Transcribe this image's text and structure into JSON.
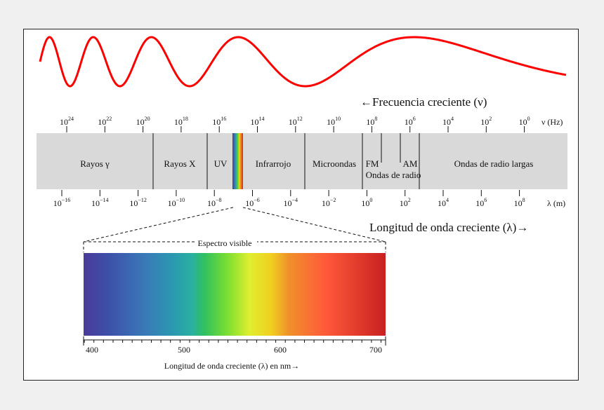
{
  "title_frequency": "←Frecuencia creciente (ν)",
  "title_wavelength": "Longitud de onda creciente (λ)→",
  "frequency_axis": {
    "unit_label": "ν (Hz)",
    "ticks": [
      {
        "base": "10",
        "exp": "24"
      },
      {
        "base": "10",
        "exp": "22"
      },
      {
        "base": "10",
        "exp": "20"
      },
      {
        "base": "10",
        "exp": "18"
      },
      {
        "base": "10",
        "exp": "16"
      },
      {
        "base": "10",
        "exp": "14"
      },
      {
        "base": "10",
        "exp": "12"
      },
      {
        "base": "10",
        "exp": "10"
      },
      {
        "base": "10",
        "exp": "8"
      },
      {
        "base": "10",
        "exp": "6"
      },
      {
        "base": "10",
        "exp": "4"
      },
      {
        "base": "10",
        "exp": "2"
      },
      {
        "base": "10",
        "exp": "0"
      }
    ]
  },
  "wavelength_axis": {
    "unit_label": "λ (m)",
    "ticks": [
      {
        "base": "10",
        "exp": "−16"
      },
      {
        "base": "10",
        "exp": "−14"
      },
      {
        "base": "10",
        "exp": "−12"
      },
      {
        "base": "10",
        "exp": "−10"
      },
      {
        "base": "10",
        "exp": "−8"
      },
      {
        "base": "10",
        "exp": "−6"
      },
      {
        "base": "10",
        "exp": "−4"
      },
      {
        "base": "10",
        "exp": "−2"
      },
      {
        "base": "10",
        "exp": "0"
      },
      {
        "base": "10",
        "exp": "2"
      },
      {
        "base": "10",
        "exp": "4"
      },
      {
        "base": "10",
        "exp": "6"
      },
      {
        "base": "10",
        "exp": "8"
      }
    ]
  },
  "bands": [
    {
      "label": "Rayos γ"
    },
    {
      "label": "Rayos X"
    },
    {
      "label": "UV"
    },
    {
      "label": "Infrarrojo"
    },
    {
      "label": "Microondas"
    },
    {
      "label": "FM"
    },
    {
      "label": "Ondas de radio"
    },
    {
      "label": "AM"
    },
    {
      "label": "Ondas de radio largas"
    }
  ],
  "visible": {
    "title": "Espectro visible",
    "axis_label": "Longitud de onda creciente (λ) en nm→",
    "ticks": [
      "400",
      "500",
      "600",
      "700"
    ]
  },
  "colors": {
    "wave": "#ff0000",
    "band_fill": "#d9d9d9",
    "frame_border": "#222222",
    "outer_background": "#f0f0f0"
  }
}
